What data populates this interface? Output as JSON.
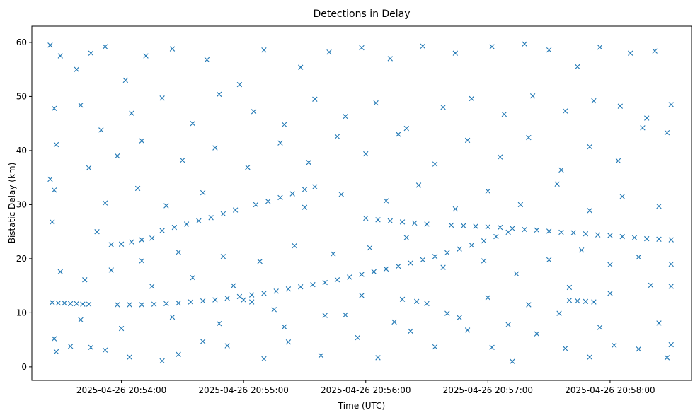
{
  "chart_data": {
    "type": "scatter",
    "title": "Detections in Delay",
    "xlabel": "Time (UTC)",
    "ylabel": "Bistatic Delay (km)",
    "x_axis_type": "time",
    "xlim": [
      "2025-04-26 20:53:16",
      "2025-04-26 20:58:40"
    ],
    "ylim": [
      -2.5,
      63
    ],
    "x_ticks": [
      "2025-04-26 20:54:00",
      "2025-04-26 20:55:00",
      "2025-04-26 20:56:00",
      "2025-04-26 20:57:00",
      "2025-04-26 20:58:00"
    ],
    "y_ticks": [
      0,
      10,
      20,
      30,
      40,
      50,
      60
    ],
    "marker": "x",
    "color": "#1f77b4",
    "grid": false,
    "series": [
      {
        "points": [
          [
            "2025-04-26 20:53:26",
            11.9
          ],
          [
            "2025-04-26 20:53:29",
            11.8
          ],
          [
            "2025-04-26 20:53:32",
            11.8
          ],
          [
            "2025-04-26 20:53:35",
            11.7
          ],
          [
            "2025-04-26 20:53:38",
            11.7
          ],
          [
            "2025-04-26 20:53:41",
            11.6
          ],
          [
            "2025-04-26 20:53:44",
            11.6
          ],
          [
            "2025-04-26 20:53:58",
            11.5
          ],
          [
            "2025-04-26 20:54:04",
            11.5
          ],
          [
            "2025-04-26 20:54:10",
            11.5
          ],
          [
            "2025-04-26 20:54:16",
            11.6
          ],
          [
            "2025-04-26 20:54:22",
            11.7
          ],
          [
            "2025-04-26 20:54:28",
            11.8
          ],
          [
            "2025-04-26 20:54:34",
            12.0
          ],
          [
            "2025-04-26 20:54:40",
            12.2
          ],
          [
            "2025-04-26 20:54:46",
            12.4
          ],
          [
            "2025-04-26 20:54:52",
            12.7
          ],
          [
            "2025-04-26 20:54:58",
            13.0
          ],
          [
            "2025-04-26 20:55:04",
            13.3
          ],
          [
            "2025-04-26 20:55:10",
            13.6
          ],
          [
            "2025-04-26 20:55:16",
            14.0
          ],
          [
            "2025-04-26 20:55:22",
            14.4
          ],
          [
            "2025-04-26 20:55:28",
            14.8
          ],
          [
            "2025-04-26 20:55:34",
            15.2
          ],
          [
            "2025-04-26 20:55:40",
            15.6
          ],
          [
            "2025-04-26 20:55:46",
            16.1
          ],
          [
            "2025-04-26 20:55:52",
            16.6
          ],
          [
            "2025-04-26 20:55:58",
            17.1
          ],
          [
            "2025-04-26 20:56:04",
            17.6
          ],
          [
            "2025-04-26 20:56:10",
            18.1
          ],
          [
            "2025-04-26 20:56:16",
            18.6
          ],
          [
            "2025-04-26 20:56:22",
            19.2
          ],
          [
            "2025-04-26 20:56:28",
            19.8
          ],
          [
            "2025-04-26 20:56:34",
            20.4
          ],
          [
            "2025-04-26 20:56:40",
            21.1
          ],
          [
            "2025-04-26 20:56:46",
            21.8
          ],
          [
            "2025-04-26 20:56:52",
            22.5
          ],
          [
            "2025-04-26 20:56:58",
            23.3
          ],
          [
            "2025-04-26 20:57:04",
            24.1
          ],
          [
            "2025-04-26 20:57:10",
            24.9
          ],
          [
            "2025-04-26 20:54:20",
            25.2
          ],
          [
            "2025-04-26 20:54:26",
            25.8
          ],
          [
            "2025-04-26 20:54:32",
            26.4
          ],
          [
            "2025-04-26 20:54:38",
            27.0
          ],
          [
            "2025-04-26 20:54:44",
            27.6
          ],
          [
            "2025-04-26 20:54:50",
            28.3
          ],
          [
            "2025-04-26 20:54:56",
            29.0
          ],
          [
            "2025-04-26 20:55:06",
            30.0
          ],
          [
            "2025-04-26 20:55:12",
            30.6
          ],
          [
            "2025-04-26 20:55:18",
            31.3
          ],
          [
            "2025-04-26 20:55:24",
            32.0
          ],
          [
            "2025-04-26 20:55:30",
            32.8
          ],
          [
            "2025-04-26 20:55:35",
            33.3
          ],
          [
            "2025-04-26 20:56:00",
            27.5
          ],
          [
            "2025-04-26 20:56:06",
            27.2
          ],
          [
            "2025-04-26 20:56:12",
            27.0
          ],
          [
            "2025-04-26 20:56:18",
            26.8
          ],
          [
            "2025-04-26 20:56:24",
            26.6
          ],
          [
            "2025-04-26 20:56:30",
            26.4
          ],
          [
            "2025-04-26 20:56:42",
            26.2
          ],
          [
            "2025-04-26 20:56:48",
            26.1
          ],
          [
            "2025-04-26 20:56:54",
            26.0
          ],
          [
            "2025-04-26 20:57:00",
            25.9
          ],
          [
            "2025-04-26 20:57:06",
            25.8
          ],
          [
            "2025-04-26 20:57:12",
            25.6
          ],
          [
            "2025-04-26 20:57:18",
            25.4
          ],
          [
            "2025-04-26 20:57:24",
            25.3
          ],
          [
            "2025-04-26 20:57:30",
            25.1
          ],
          [
            "2025-04-26 20:57:36",
            24.9
          ],
          [
            "2025-04-26 20:57:42",
            24.8
          ],
          [
            "2025-04-26 20:57:48",
            24.6
          ],
          [
            "2025-04-26 20:57:54",
            24.4
          ],
          [
            "2025-04-26 20:58:00",
            24.3
          ],
          [
            "2025-04-26 20:58:06",
            24.1
          ],
          [
            "2025-04-26 20:58:12",
            23.9
          ],
          [
            "2025-04-26 20:58:18",
            23.7
          ],
          [
            "2025-04-26 20:58:24",
            23.6
          ],
          [
            "2025-04-26 20:58:30",
            23.5
          ],
          [
            "2025-04-26 20:57:40",
            12.3
          ],
          [
            "2025-04-26 20:57:44",
            12.2
          ],
          [
            "2025-04-26 20:57:48",
            12.1
          ],
          [
            "2025-04-26 20:57:52",
            12.0
          ],
          [
            "2025-04-26 20:53:55",
            22.6
          ],
          [
            "2025-04-26 20:54:00",
            22.7
          ],
          [
            "2025-04-26 20:54:05",
            23.1
          ],
          [
            "2025-04-26 20:54:10",
            23.5
          ],
          [
            "2025-04-26 20:54:15",
            23.8
          ],
          [
            "2025-04-26 20:56:25",
            12.1
          ],
          [
            "2025-04-26 20:56:30",
            11.7
          ],
          [
            "2025-04-26 20:55:00",
            12.4
          ],
          [
            "2025-04-26 20:55:04",
            12.0
          ],
          [
            "2025-04-26 20:53:25",
            59.5
          ],
          [
            "2025-04-26 20:53:30",
            57.5
          ],
          [
            "2025-04-26 20:53:38",
            55.0
          ],
          [
            "2025-04-26 20:53:45",
            58.0
          ],
          [
            "2025-04-26 20:53:52",
            59.2
          ],
          [
            "2025-04-26 20:54:02",
            53.0
          ],
          [
            "2025-04-26 20:54:12",
            57.5
          ],
          [
            "2025-04-26 20:54:25",
            58.8
          ],
          [
            "2025-04-26 20:54:42",
            56.8
          ],
          [
            "2025-04-26 20:54:58",
            52.2
          ],
          [
            "2025-04-26 20:55:10",
            58.6
          ],
          [
            "2025-04-26 20:55:28",
            55.4
          ],
          [
            "2025-04-26 20:55:42",
            58.2
          ],
          [
            "2025-04-26 20:55:58",
            59.0
          ],
          [
            "2025-04-26 20:56:12",
            57.0
          ],
          [
            "2025-04-26 20:56:28",
            59.3
          ],
          [
            "2025-04-26 20:56:44",
            58.0
          ],
          [
            "2025-04-26 20:57:02",
            59.2
          ],
          [
            "2025-04-26 20:57:18",
            59.7
          ],
          [
            "2025-04-26 20:57:30",
            58.6
          ],
          [
            "2025-04-26 20:57:44",
            55.5
          ],
          [
            "2025-04-26 20:57:55",
            59.1
          ],
          [
            "2025-04-26 20:58:10",
            58.0
          ],
          [
            "2025-04-26 20:58:22",
            58.4
          ],
          [
            "2025-04-26 20:53:27",
            47.8
          ],
          [
            "2025-04-26 20:53:40",
            48.4
          ],
          [
            "2025-04-26 20:53:50",
            43.8
          ],
          [
            "2025-04-26 20:54:05",
            46.9
          ],
          [
            "2025-04-26 20:54:20",
            49.7
          ],
          [
            "2025-04-26 20:54:35",
            45.0
          ],
          [
            "2025-04-26 20:54:48",
            50.4
          ],
          [
            "2025-04-26 20:55:05",
            47.2
          ],
          [
            "2025-04-26 20:55:20",
            44.8
          ],
          [
            "2025-04-26 20:55:35",
            49.5
          ],
          [
            "2025-04-26 20:55:50",
            46.3
          ],
          [
            "2025-04-26 20:56:05",
            48.8
          ],
          [
            "2025-04-26 20:56:20",
            44.1
          ],
          [
            "2025-04-26 20:56:38",
            48.0
          ],
          [
            "2025-04-26 20:56:52",
            49.6
          ],
          [
            "2025-04-26 20:57:08",
            46.7
          ],
          [
            "2025-04-26 20:57:22",
            50.1
          ],
          [
            "2025-04-26 20:57:38",
            47.3
          ],
          [
            "2025-04-26 20:57:52",
            49.2
          ],
          [
            "2025-04-26 20:58:05",
            48.2
          ],
          [
            "2025-04-26 20:58:18",
            46.0
          ],
          [
            "2025-04-26 20:58:30",
            48.5
          ],
          [
            "2025-04-26 20:53:28",
            41.1
          ],
          [
            "2025-04-26 20:53:44",
            36.8
          ],
          [
            "2025-04-26 20:53:58",
            39.0
          ],
          [
            "2025-04-26 20:54:10",
            41.8
          ],
          [
            "2025-04-26 20:54:30",
            38.2
          ],
          [
            "2025-04-26 20:54:46",
            40.5
          ],
          [
            "2025-04-26 20:55:02",
            36.9
          ],
          [
            "2025-04-26 20:55:18",
            41.4
          ],
          [
            "2025-04-26 20:55:32",
            37.8
          ],
          [
            "2025-04-26 20:55:46",
            42.6
          ],
          [
            "2025-04-26 20:56:00",
            39.4
          ],
          [
            "2025-04-26 20:56:16",
            43.0
          ],
          [
            "2025-04-26 20:56:34",
            37.5
          ],
          [
            "2025-04-26 20:56:50",
            41.9
          ],
          [
            "2025-04-26 20:57:06",
            38.8
          ],
          [
            "2025-04-26 20:57:20",
            42.4
          ],
          [
            "2025-04-26 20:57:36",
            36.4
          ],
          [
            "2025-04-26 20:57:50",
            40.7
          ],
          [
            "2025-04-26 20:58:04",
            38.1
          ],
          [
            "2025-04-26 20:58:16",
            44.2
          ],
          [
            "2025-04-26 20:58:28",
            43.3
          ],
          [
            "2025-04-26 20:53:25",
            34.7
          ],
          [
            "2025-04-26 20:53:27",
            32.7
          ],
          [
            "2025-04-26 20:53:52",
            30.3
          ],
          [
            "2025-04-26 20:54:08",
            33.0
          ],
          [
            "2025-04-26 20:54:22",
            29.8
          ],
          [
            "2025-04-26 20:54:40",
            32.2
          ],
          [
            "2025-04-26 20:55:30",
            29.5
          ],
          [
            "2025-04-26 20:55:48",
            31.9
          ],
          [
            "2025-04-26 20:56:10",
            30.7
          ],
          [
            "2025-04-26 20:56:26",
            33.6
          ],
          [
            "2025-04-26 20:56:44",
            29.2
          ],
          [
            "2025-04-26 20:57:00",
            32.5
          ],
          [
            "2025-04-26 20:57:16",
            30.0
          ],
          [
            "2025-04-26 20:57:34",
            33.8
          ],
          [
            "2025-04-26 20:57:50",
            28.9
          ],
          [
            "2025-04-26 20:58:06",
            31.5
          ],
          [
            "2025-04-26 20:58:24",
            29.7
          ],
          [
            "2025-04-26 20:53:26",
            26.8
          ],
          [
            "2025-04-26 20:53:48",
            25.0
          ],
          [
            "2025-04-26 20:54:10",
            19.6
          ],
          [
            "2025-04-26 20:54:28",
            21.2
          ],
          [
            "2025-04-26 20:54:50",
            20.4
          ],
          [
            "2025-04-26 20:55:08",
            19.5
          ],
          [
            "2025-04-26 20:55:25",
            22.4
          ],
          [
            "2025-04-26 20:55:44",
            20.9
          ],
          [
            "2025-04-26 20:56:02",
            22.0
          ],
          [
            "2025-04-26 20:56:20",
            23.9
          ],
          [
            "2025-04-26 20:56:38",
            18.4
          ],
          [
            "2025-04-26 20:56:58",
            19.6
          ],
          [
            "2025-04-26 20:57:14",
            17.2
          ],
          [
            "2025-04-26 20:57:30",
            19.8
          ],
          [
            "2025-04-26 20:57:46",
            21.6
          ],
          [
            "2025-04-26 20:58:00",
            18.9
          ],
          [
            "2025-04-26 20:58:14",
            20.3
          ],
          [
            "2025-04-26 20:58:30",
            19.0
          ],
          [
            "2025-04-26 20:53:30",
            17.6
          ],
          [
            "2025-04-26 20:53:42",
            16.1
          ],
          [
            "2025-04-26 20:53:55",
            17.9
          ],
          [
            "2025-04-26 20:54:15",
            14.9
          ],
          [
            "2025-04-26 20:54:35",
            16.5
          ],
          [
            "2025-04-26 20:54:55",
            15.0
          ],
          [
            "2025-04-26 20:55:15",
            10.6
          ],
          [
            "2025-04-26 20:55:40",
            9.5
          ],
          [
            "2025-04-26 20:55:58",
            13.2
          ],
          [
            "2025-04-26 20:56:18",
            12.5
          ],
          [
            "2025-04-26 20:56:40",
            9.9
          ],
          [
            "2025-04-26 20:57:00",
            12.8
          ],
          [
            "2025-04-26 20:57:20",
            11.5
          ],
          [
            "2025-04-26 20:57:40",
            14.7
          ],
          [
            "2025-04-26 20:58:00",
            13.6
          ],
          [
            "2025-04-26 20:58:20",
            15.1
          ],
          [
            "2025-04-26 20:58:30",
            14.9
          ],
          [
            "2025-04-26 20:53:27",
            5.2
          ],
          [
            "2025-04-26 20:53:28",
            2.8
          ],
          [
            "2025-04-26 20:53:35",
            3.8
          ],
          [
            "2025-04-26 20:53:45",
            3.6
          ],
          [
            "2025-04-26 20:53:52",
            3.1
          ],
          [
            "2025-04-26 20:54:04",
            1.8
          ],
          [
            "2025-04-26 20:54:20",
            1.1
          ],
          [
            "2025-04-26 20:54:28",
            2.3
          ],
          [
            "2025-04-26 20:54:40",
            4.7
          ],
          [
            "2025-04-26 20:54:52",
            3.9
          ],
          [
            "2025-04-26 20:55:10",
            1.5
          ],
          [
            "2025-04-26 20:55:22",
            4.6
          ],
          [
            "2025-04-26 20:55:38",
            2.1
          ],
          [
            "2025-04-26 20:55:56",
            5.4
          ],
          [
            "2025-04-26 20:56:06",
            1.7
          ],
          [
            "2025-04-26 20:56:22",
            6.6
          ],
          [
            "2025-04-26 20:56:34",
            3.7
          ],
          [
            "2025-04-26 20:56:50",
            6.8
          ],
          [
            "2025-04-26 20:57:02",
            3.6
          ],
          [
            "2025-04-26 20:57:12",
            1.0
          ],
          [
            "2025-04-26 20:57:24",
            6.1
          ],
          [
            "2025-04-26 20:57:38",
            3.4
          ],
          [
            "2025-04-26 20:57:50",
            1.8
          ],
          [
            "2025-04-26 20:58:02",
            4.0
          ],
          [
            "2025-04-26 20:58:14",
            3.3
          ],
          [
            "2025-04-26 20:58:28",
            1.7
          ],
          [
            "2025-04-26 20:58:30",
            4.1
          ],
          [
            "2025-04-26 20:53:40",
            8.7
          ],
          [
            "2025-04-26 20:54:00",
            7.1
          ],
          [
            "2025-04-26 20:54:25",
            9.2
          ],
          [
            "2025-04-26 20:54:48",
            8.0
          ],
          [
            "2025-04-26 20:55:20",
            7.4
          ],
          [
            "2025-04-26 20:55:50",
            9.6
          ],
          [
            "2025-04-26 20:56:14",
            8.3
          ],
          [
            "2025-04-26 20:56:46",
            9.1
          ],
          [
            "2025-04-26 20:57:10",
            7.8
          ],
          [
            "2025-04-26 20:57:35",
            9.9
          ],
          [
            "2025-04-26 20:57:55",
            7.3
          ],
          [
            "2025-04-26 20:58:24",
            8.1
          ]
        ]
      }
    ]
  }
}
